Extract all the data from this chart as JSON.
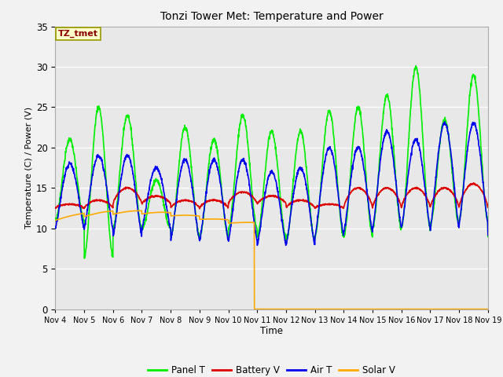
{
  "title": "Tonzi Tower Met: Temperature and Power",
  "xlabel": "Time",
  "ylabel": "Temperature (C) / Power (V)",
  "ylim": [
    0,
    35
  ],
  "xlim_days": [
    4,
    19
  ],
  "annotation_label": "TZ_tmet",
  "series": {
    "panel_t": {
      "label": "Panel T",
      "color": "#00ee00",
      "lw": 1.2
    },
    "battery_v": {
      "label": "Battery V",
      "color": "#dd0000",
      "lw": 1.2
    },
    "air_t": {
      "label": "Air T",
      "color": "#0000ee",
      "lw": 1.2
    },
    "solar_v": {
      "label": "Solar V",
      "color": "#ffaa00",
      "lw": 1.2
    }
  },
  "xtick_labels": [
    "Nov 4",
    "Nov 5",
    "Nov 6",
    "Nov 7",
    "Nov 8",
    "Nov 9",
    "Nov 10",
    "Nov 11",
    "Nov 12",
    "Nov 13",
    "Nov 14",
    "Nov 15",
    "Nov 16",
    "Nov 17",
    "Nov 18",
    "Nov 19"
  ],
  "xtick_positions": [
    4,
    5,
    6,
    7,
    8,
    9,
    10,
    11,
    12,
    13,
    14,
    15,
    16,
    17,
    18,
    19
  ],
  "yticks": [
    0,
    5,
    10,
    15,
    20,
    25,
    30,
    35
  ]
}
